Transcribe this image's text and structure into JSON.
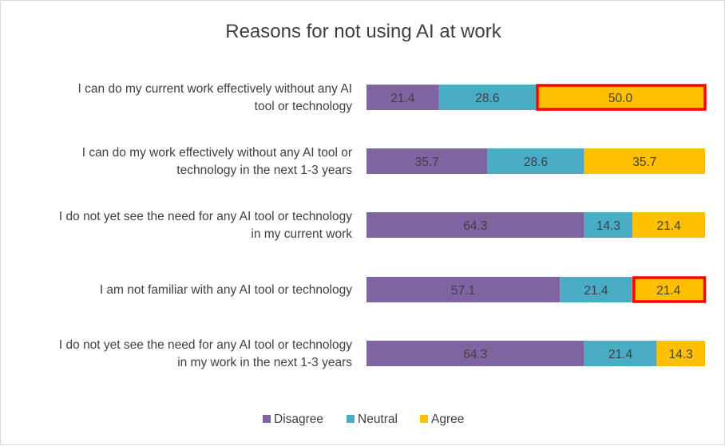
{
  "chart_data": {
    "type": "bar",
    "orientation": "horizontal",
    "stacked": true,
    "title": "Reasons for not using AI at work",
    "xlabel": "",
    "ylabel": "",
    "xlim": [
      0,
      100
    ],
    "grid": false,
    "legend_position": "bottom",
    "categories": [
      [
        "I can do my current work effectively without any AI",
        "tool or technology"
      ],
      [
        "I can do my work effectively without any AI tool or",
        "technology in the next 1-3 years"
      ],
      [
        "I do not yet see the need for any AI tool or technology",
        "in my current work"
      ],
      [
        "I am not familiar with any AI tool or technology"
      ],
      [
        "I do not yet see the need for any AI tool or technology",
        "in my work in the next 1-3 years"
      ]
    ],
    "series": [
      {
        "name": "Disagree",
        "color": "#8064A2",
        "values": [
          21.4,
          35.7,
          64.3,
          57.1,
          64.3
        ]
      },
      {
        "name": "Neutral",
        "color": "#4BACC6",
        "values": [
          28.6,
          28.6,
          14.3,
          21.4,
          21.4
        ]
      },
      {
        "name": "Agree",
        "color": "#FFC000",
        "values": [
          50.0,
          35.7,
          21.4,
          21.4,
          14.3
        ]
      }
    ],
    "highlighted": [
      {
        "series": "Agree",
        "category_index": 0
      },
      {
        "series": "Agree",
        "category_index": 3
      }
    ],
    "highlight_color": "#FF0000"
  }
}
